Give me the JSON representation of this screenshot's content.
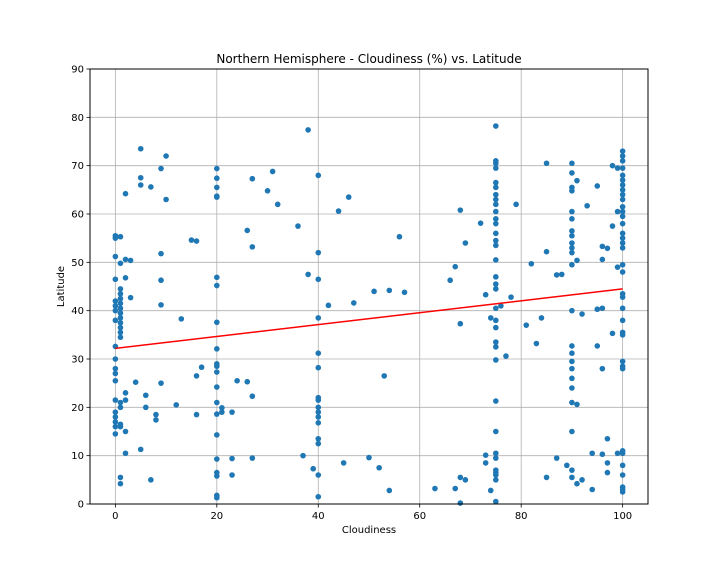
{
  "chart_data": {
    "type": "scatter",
    "title": "Northern Hemisphere - Cloudiness (%) vs. Latitude",
    "xlabel": "Cloudiness",
    "ylabel": "Latitude",
    "xlim": [
      -5,
      105
    ],
    "ylim": [
      0,
      90
    ],
    "xticks": [
      0,
      20,
      40,
      60,
      80,
      100
    ],
    "yticks": [
      0,
      10,
      20,
      30,
      40,
      50,
      60,
      70,
      80,
      90
    ],
    "grid": true,
    "colors": {
      "points": "#1f77b4",
      "regression": "#ff0000",
      "grid": "#b0b0b0"
    },
    "regression": {
      "x": [
        0,
        100
      ],
      "y": [
        32.2,
        44.5
      ]
    },
    "points": [
      [
        0,
        55.5
      ],
      [
        0,
        55
      ],
      [
        0,
        51.2
      ],
      [
        0,
        46.5
      ],
      [
        0,
        42
      ],
      [
        0,
        41
      ],
      [
        0,
        40
      ],
      [
        0,
        38
      ],
      [
        0,
        32.6
      ],
      [
        0,
        30
      ],
      [
        0,
        28
      ],
      [
        0,
        27
      ],
      [
        0,
        25.5
      ],
      [
        0,
        21.5
      ],
      [
        0,
        19
      ],
      [
        0,
        18
      ],
      [
        0,
        17
      ],
      [
        0,
        16
      ],
      [
        0,
        14.5
      ],
      [
        1,
        55.3
      ],
      [
        1,
        49.8
      ],
      [
        1,
        44.5
      ],
      [
        1,
        43.5
      ],
      [
        1,
        42.5
      ],
      [
        1,
        41.5
      ],
      [
        1,
        40.5
      ],
      [
        1,
        39.5
      ],
      [
        1,
        38.5
      ],
      [
        1,
        37.5
      ],
      [
        1,
        36.5
      ],
      [
        1,
        35.5
      ],
      [
        1,
        34.5
      ],
      [
        1,
        21
      ],
      [
        1,
        20
      ],
      [
        1,
        16.5
      ],
      [
        1,
        16
      ],
      [
        1,
        5.5
      ],
      [
        1,
        4.2
      ],
      [
        2,
        64.2
      ],
      [
        2,
        50.6
      ],
      [
        2,
        46.8
      ],
      [
        2,
        23
      ],
      [
        2,
        21.5
      ],
      [
        2,
        15
      ],
      [
        2,
        10.5
      ],
      [
        3,
        50.4
      ],
      [
        3,
        42.7
      ],
      [
        4,
        25.2
      ],
      [
        5,
        73.5
      ],
      [
        5,
        67.5
      ],
      [
        5,
        66
      ],
      [
        5,
        11.3
      ],
      [
        6,
        22.5
      ],
      [
        6,
        20
      ],
      [
        7,
        65.6
      ],
      [
        7,
        5
      ],
      [
        8,
        18.5
      ],
      [
        8,
        17.4
      ],
      [
        9,
        69.4
      ],
      [
        9,
        51.8
      ],
      [
        9,
        46.3
      ],
      [
        9,
        41.2
      ],
      [
        9,
        25
      ],
      [
        10,
        72
      ],
      [
        10,
        63
      ],
      [
        12,
        20.5
      ],
      [
        13,
        38.3
      ],
      [
        15,
        54.6
      ],
      [
        16,
        54.4
      ],
      [
        16,
        26.5
      ],
      [
        16,
        18.5
      ],
      [
        17,
        28.3
      ],
      [
        20,
        69.4
      ],
      [
        20,
        67.4
      ],
      [
        20,
        65.5
      ],
      [
        20,
        63.7
      ],
      [
        20,
        63.5
      ],
      [
        20,
        46.9
      ],
      [
        20,
        45.2
      ],
      [
        20,
        37.6
      ],
      [
        20,
        32.1
      ],
      [
        20,
        29
      ],
      [
        20,
        28.5
      ],
      [
        20,
        27.3
      ],
      [
        20,
        24.2
      ],
      [
        20,
        21
      ],
      [
        20,
        18.6
      ],
      [
        20,
        14.3
      ],
      [
        20,
        9.3
      ],
      [
        20,
        6.5
      ],
      [
        20,
        5.8
      ],
      [
        20,
        1.8
      ],
      [
        20,
        1.3
      ],
      [
        21,
        19.9
      ],
      [
        21,
        19
      ],
      [
        23,
        19
      ],
      [
        23,
        9.4
      ],
      [
        23,
        6
      ],
      [
        24,
        25.5
      ],
      [
        26,
        56.6
      ],
      [
        26,
        25.3
      ],
      [
        27,
        67.3
      ],
      [
        27,
        53.2
      ],
      [
        27,
        22.3
      ],
      [
        27,
        9.5
      ],
      [
        30,
        64.8
      ],
      [
        31,
        68.8
      ],
      [
        32,
        62
      ],
      [
        36,
        57.5
      ],
      [
        37,
        10
      ],
      [
        38,
        77.4
      ],
      [
        38,
        47.5
      ],
      [
        39,
        7.3
      ],
      [
        40,
        68
      ],
      [
        40,
        52
      ],
      [
        40,
        46.5
      ],
      [
        40,
        38.5
      ],
      [
        40,
        31.2
      ],
      [
        40,
        28.2
      ],
      [
        40,
        22
      ],
      [
        40,
        21.5
      ],
      [
        40,
        20
      ],
      [
        40,
        19
      ],
      [
        40,
        18
      ],
      [
        40,
        16.8
      ],
      [
        40,
        13.5
      ],
      [
        40,
        12.5
      ],
      [
        40,
        6
      ],
      [
        40,
        1.5
      ],
      [
        42,
        41.1
      ],
      [
        44,
        60.6
      ],
      [
        45,
        8.5
      ],
      [
        46,
        63.5
      ],
      [
        47,
        41.6
      ],
      [
        50,
        9.6
      ],
      [
        51,
        44
      ],
      [
        52,
        7.5
      ],
      [
        53,
        26.5
      ],
      [
        54,
        44.2
      ],
      [
        54,
        2.8
      ],
      [
        56,
        55.3
      ],
      [
        57,
        43.8
      ],
      [
        63,
        3.2
      ],
      [
        66,
        46.3
      ],
      [
        67,
        49.1
      ],
      [
        67,
        3.2
      ],
      [
        68,
        60.8
      ],
      [
        68,
        37.3
      ],
      [
        68,
        5.5
      ],
      [
        68,
        0.2
      ],
      [
        69,
        54
      ],
      [
        69,
        5
      ],
      [
        72,
        58.1
      ],
      [
        73,
        43.3
      ],
      [
        73,
        10.1
      ],
      [
        73,
        8.5
      ],
      [
        74,
        38.5
      ],
      [
        74,
        2.8
      ],
      [
        75,
        78.2
      ],
      [
        75,
        71
      ],
      [
        75,
        70.5
      ],
      [
        75,
        69.5
      ],
      [
        75,
        66.5
      ],
      [
        75,
        65.5
      ],
      [
        75,
        64
      ],
      [
        75,
        63
      ],
      [
        75,
        62
      ],
      [
        75,
        60.5
      ],
      [
        75,
        59
      ],
      [
        75,
        58
      ],
      [
        75,
        56
      ],
      [
        75,
        54.5
      ],
      [
        75,
        53.5
      ],
      [
        75,
        50.5
      ],
      [
        75,
        47
      ],
      [
        75,
        45.5
      ],
      [
        75,
        44.5
      ],
      [
        75,
        40.5
      ],
      [
        75,
        38
      ],
      [
        75,
        36.5
      ],
      [
        75,
        33.5
      ],
      [
        75,
        32.5
      ],
      [
        75,
        29.8
      ],
      [
        75,
        21.3
      ],
      [
        75,
        15
      ],
      [
        75,
        10.5
      ],
      [
        75,
        9.5
      ],
      [
        75,
        7
      ],
      [
        75,
        6.5
      ],
      [
        75,
        6
      ],
      [
        75,
        5
      ],
      [
        75,
        0.5
      ],
      [
        76,
        41
      ],
      [
        77,
        30.6
      ],
      [
        78,
        42.8
      ],
      [
        79,
        62
      ],
      [
        81,
        37
      ],
      [
        82,
        49.7
      ],
      [
        83,
        33.2
      ],
      [
        84,
        38.5
      ],
      [
        85,
        70.5
      ],
      [
        85,
        52.2
      ],
      [
        85,
        5.5
      ],
      [
        87,
        47.4
      ],
      [
        87,
        9.5
      ],
      [
        88,
        47.5
      ],
      [
        89,
        8
      ],
      [
        90,
        70.5
      ],
      [
        90,
        68.5
      ],
      [
        90,
        65.5
      ],
      [
        90,
        64.8
      ],
      [
        90,
        60.5
      ],
      [
        90,
        59
      ],
      [
        90,
        56.5
      ],
      [
        90,
        55.5
      ],
      [
        90,
        54
      ],
      [
        90,
        53
      ],
      [
        90,
        52
      ],
      [
        90,
        49.5
      ],
      [
        90,
        40
      ],
      [
        90,
        32.7
      ],
      [
        90,
        31.2
      ],
      [
        90,
        29.5
      ],
      [
        90,
        28
      ],
      [
        90,
        26
      ],
      [
        90,
        24
      ],
      [
        90,
        21
      ],
      [
        90,
        15
      ],
      [
        90,
        7
      ],
      [
        90,
        5.5
      ],
      [
        91,
        66.9
      ],
      [
        91,
        50.4
      ],
      [
        91,
        20.6
      ],
      [
        91,
        4.2
      ],
      [
        92,
        39.3
      ],
      [
        92,
        5
      ],
      [
        93,
        61.7
      ],
      [
        94,
        10.5
      ],
      [
        94,
        3
      ],
      [
        95,
        65.8
      ],
      [
        95,
        40.3
      ],
      [
        95,
        32.7
      ],
      [
        96,
        53.3
      ],
      [
        96,
        50.6
      ],
      [
        96,
        40.5
      ],
      [
        96,
        28
      ],
      [
        96,
        10.3
      ],
      [
        97,
        52.9
      ],
      [
        97,
        13.5
      ],
      [
        97,
        8.5
      ],
      [
        97,
        6.5
      ],
      [
        98,
        70
      ],
      [
        98,
        57.5
      ],
      [
        98,
        35.3
      ],
      [
        99,
        69.5
      ],
      [
        99,
        60.5
      ],
      [
        99,
        49
      ],
      [
        99,
        10.5
      ],
      [
        100,
        73
      ],
      [
        100,
        72
      ],
      [
        100,
        71
      ],
      [
        100,
        69.5
      ],
      [
        100,
        68
      ],
      [
        100,
        67
      ],
      [
        100,
        66
      ],
      [
        100,
        65
      ],
      [
        100,
        64
      ],
      [
        100,
        63
      ],
      [
        100,
        61.5
      ],
      [
        100,
        60.5
      ],
      [
        100,
        59.5
      ],
      [
        100,
        58
      ],
      [
        100,
        56
      ],
      [
        100,
        55
      ],
      [
        100,
        54
      ],
      [
        100,
        53
      ],
      [
        100,
        49.5
      ],
      [
        100,
        48
      ],
      [
        100,
        43.5
      ],
      [
        100,
        42.8
      ],
      [
        100,
        40.5
      ],
      [
        100,
        38
      ],
      [
        100,
        35.5
      ],
      [
        100,
        35
      ],
      [
        100,
        29.5
      ],
      [
        100,
        28.5
      ],
      [
        100,
        28
      ],
      [
        100,
        11
      ],
      [
        100,
        10.5
      ],
      [
        100,
        8
      ],
      [
        100,
        6
      ],
      [
        100,
        3.5
      ],
      [
        100,
        3
      ],
      [
        100,
        2.5
      ]
    ]
  }
}
